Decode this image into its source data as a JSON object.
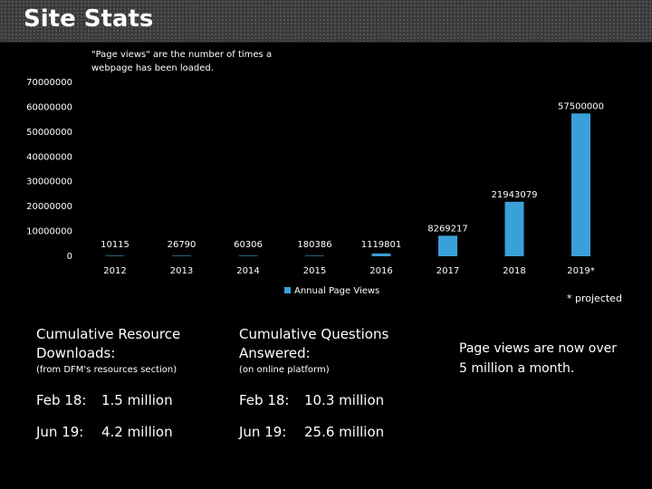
{
  "header": {
    "title": "Site Stats"
  },
  "note": "\"Page views\" are the number of times a webpage has been loaded.",
  "chart_data": {
    "type": "bar",
    "categories": [
      "2012",
      "2013",
      "2014",
      "2015",
      "2016",
      "2017",
      "2018",
      "2019*"
    ],
    "series": [
      {
        "name": "Annual Page Views",
        "values": [
          10115,
          26790,
          60306,
          180386,
          1119801,
          8269217,
          21943079,
          57500000
        ],
        "labels": [
          "10115",
          "26790",
          "60306",
          "180386",
          "1119801",
          "8269217",
          "21943079",
          "57500000"
        ]
      }
    ],
    "yticks": [
      "0",
      "10000000",
      "20000000",
      "30000000",
      "40000000",
      "50000000",
      "60000000",
      "70000000"
    ],
    "ylim": [
      0,
      70000000
    ],
    "grid": false,
    "legend": "bottom",
    "bar_color": "#3aa0d8",
    "footnote": "* projected"
  },
  "stats": {
    "downloads": {
      "title_line1": "Cumulative Resource",
      "title_line2": "Downloads:",
      "sub": "(from DFM's resources section)",
      "rows": [
        {
          "label": "Feb 18:",
          "value": "1.5 million"
        },
        {
          "label": "Jun 19:",
          "value": "4.2 million"
        }
      ]
    },
    "questions": {
      "title_line1": "Cumulative Questions",
      "title_line2": "Answered:",
      "sub": "(on online platform)",
      "rows": [
        {
          "label": "Feb 18:",
          "value": "10.3 million"
        },
        {
          "label": "Jun 19:",
          "value": "25.6 million"
        }
      ]
    }
  },
  "callout": "Page views are now over 5 million a month."
}
